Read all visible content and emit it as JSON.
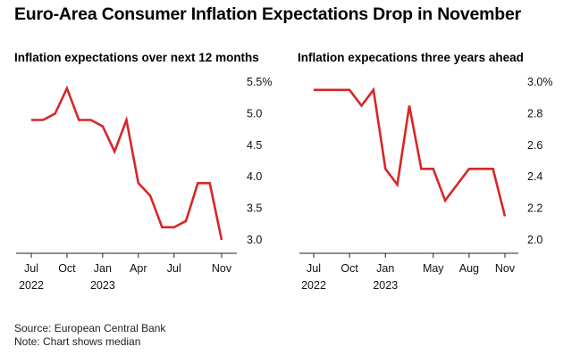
{
  "title": "Euro-Area Consumer Inflation Expectations Drop in November",
  "footer": {
    "source": "Source: European Central Bank",
    "note": "Note: Chart shows median"
  },
  "chart_data": [
    {
      "type": "line",
      "title": "Inflation expectations over next 12 months",
      "y_ticks": [
        "3.0",
        "3.5",
        "4.0",
        "4.5",
        "5.0",
        "5.5%"
      ],
      "ylim": [
        3.0,
        5.5
      ],
      "y_axis_side": "right",
      "x_ticks": [
        {
          "label": "Jul",
          "year": "2022",
          "index": 0
        },
        {
          "label": "Oct",
          "year": "",
          "index": 3
        },
        {
          "label": "Jan",
          "year": "2023",
          "index": 6
        },
        {
          "label": "Apr",
          "year": "",
          "index": 9
        },
        {
          "label": "Jul",
          "year": "",
          "index": 12
        },
        {
          "label": "Nov",
          "year": "",
          "index": 16
        }
      ],
      "x": [
        "2022-07",
        "2022-08",
        "2022-09",
        "2022-10",
        "2022-11",
        "2022-12",
        "2023-01",
        "2023-02",
        "2023-03",
        "2023-04",
        "2023-05",
        "2023-06",
        "2023-07",
        "2023-08",
        "2023-09",
        "2023-10",
        "2023-11"
      ],
      "values": [
        4.9,
        4.9,
        5.0,
        5.4,
        4.9,
        4.9,
        4.8,
        4.4,
        4.9,
        3.9,
        3.7,
        3.2,
        3.2,
        3.3,
        3.9,
        3.9,
        3.0
      ],
      "color": "#d62728"
    },
    {
      "type": "line",
      "title": "Inflation expecations three years ahead",
      "y_ticks": [
        "2.0",
        "2.2",
        "2.4",
        "2.6",
        "2.8",
        "3.0%"
      ],
      "ylim": [
        2.0,
        3.0
      ],
      "y_axis_side": "right",
      "x_ticks": [
        {
          "label": "Jul",
          "year": "2022",
          "index": 0
        },
        {
          "label": "Oct",
          "year": "",
          "index": 3
        },
        {
          "label": "Jan",
          "year": "2023",
          "index": 6
        },
        {
          "label": "May",
          "year": "",
          "index": 10
        },
        {
          "label": "Aug",
          "year": "",
          "index": 13
        },
        {
          "label": "Nov",
          "year": "",
          "index": 16
        }
      ],
      "x": [
        "2022-07",
        "2022-08",
        "2022-09",
        "2022-10",
        "2022-11",
        "2022-12",
        "2023-01",
        "2023-02",
        "2023-03",
        "2023-04",
        "2023-05",
        "2023-06",
        "2023-07",
        "2023-08",
        "2023-09",
        "2023-10",
        "2023-11"
      ],
      "values": [
        2.95,
        2.95,
        2.95,
        2.95,
        2.85,
        2.95,
        2.45,
        2.35,
        2.85,
        2.45,
        2.45,
        2.25,
        2.35,
        2.45,
        2.45,
        2.45,
        2.15
      ],
      "color": "#d62728"
    }
  ]
}
